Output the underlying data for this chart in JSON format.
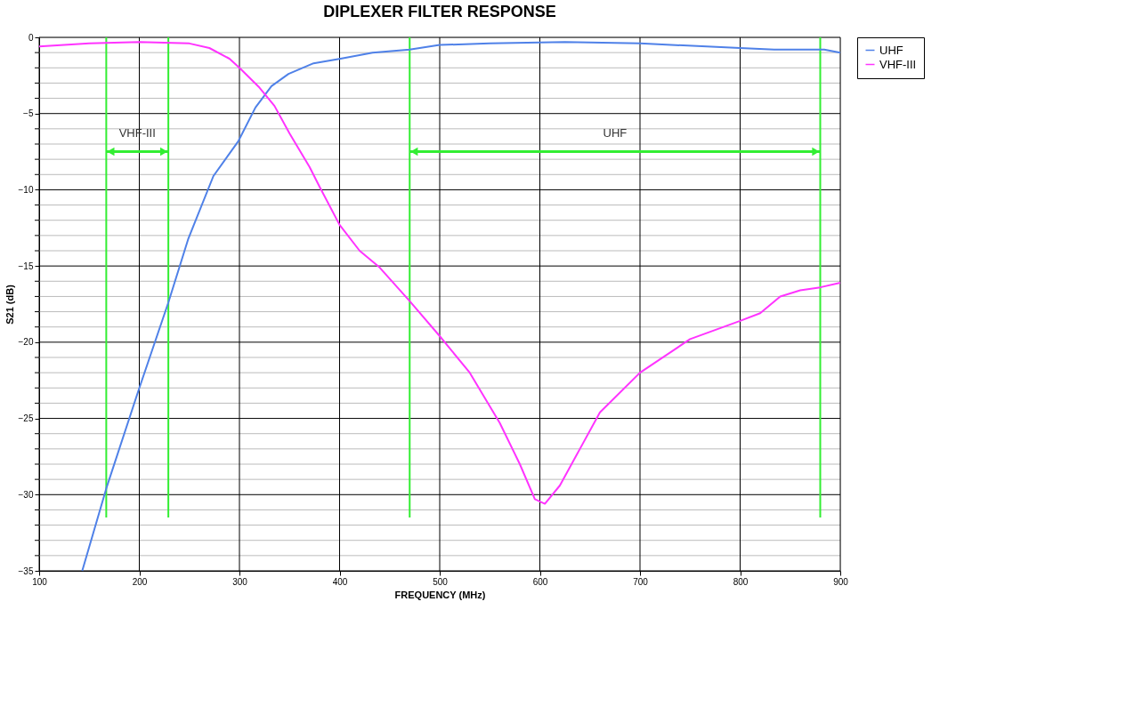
{
  "chart_data": {
    "type": "line",
    "title": "DIPLEXER FILTER RESPONSE",
    "xlabel": "FREQUENCY (MHz)",
    "ylabel": "S21 (dB)",
    "series": [
      {
        "name": "UHF",
        "color": "#4f81e8",
        "x": [
          143,
          167,
          199,
          229,
          249,
          274,
          299,
          316,
          332,
          349,
          374,
          401,
          433,
          470,
          500,
          550,
          625,
          700,
          800,
          834,
          884,
          900
        ],
        "values": [
          -35,
          -29.6,
          -23.2,
          -17.4,
          -13.2,
          -9.1,
          -6.8,
          -4.6,
          -3.2,
          -2.4,
          -1.7,
          -1.4,
          -1.0,
          -0.8,
          -0.5,
          -0.4,
          -0.3,
          -0.4,
          -0.7,
          -0.8,
          -0.8,
          -1.0
        ]
      },
      {
        "name": "VHF-III",
        "color": "#ff33ff",
        "x": [
          100,
          150,
          200,
          250,
          270,
          290,
          300,
          320,
          335,
          350,
          370,
          380,
          400,
          420,
          440,
          470,
          500,
          530,
          560,
          580,
          595,
          605,
          620,
          640,
          660,
          700,
          750,
          800,
          820,
          840,
          860,
          880,
          900
        ],
        "values": [
          -0.6,
          -0.4,
          -0.3,
          -0.4,
          -0.7,
          -1.4,
          -2.0,
          -3.3,
          -4.5,
          -6.3,
          -8.5,
          -9.8,
          -12.3,
          -14.0,
          -15.1,
          -17.3,
          -19.6,
          -22.0,
          -25.3,
          -28.0,
          -30.3,
          -30.6,
          -29.4,
          -27.0,
          -24.6,
          -22.0,
          -19.8,
          -18.6,
          -18.1,
          -17.0,
          -16.6,
          -16.4,
          -16.1
        ]
      }
    ],
    "xlim": [
      100,
      900
    ],
    "xticks": [
      100,
      200,
      300,
      400,
      500,
      600,
      700,
      800,
      900
    ],
    "ylim": [
      -35,
      0
    ],
    "yticks": [
      0,
      {
        "value": -1,
        "label": null
      },
      {
        "value": -2,
        "label": null
      },
      {
        "value": -3,
        "label": null
      },
      {
        "value": -4,
        "label": null
      },
      -5,
      {
        "value": -6,
        "label": null
      },
      {
        "value": -7,
        "label": null
      },
      {
        "value": -8,
        "label": null
      },
      {
        "value": -9,
        "label": null
      },
      -10,
      {
        "value": -11,
        "label": null
      },
      {
        "value": -12,
        "label": null
      },
      {
        "value": -13,
        "label": null
      },
      {
        "value": -14,
        "label": null
      },
      -15,
      {
        "value": -16,
        "label": null
      },
      {
        "value": -17,
        "label": null
      },
      {
        "value": -18,
        "label": null
      },
      {
        "value": -19,
        "label": null
      },
      -20,
      {
        "value": -21,
        "label": null
      },
      {
        "value": -22,
        "label": null
      },
      {
        "value": -23,
        "label": null
      },
      {
        "value": -24,
        "label": null
      },
      -25,
      {
        "value": -26,
        "label": null
      },
      {
        "value": -27,
        "label": null
      },
      {
        "value": -28,
        "label": null
      },
      {
        "value": -29,
        "label": null
      },
      -30,
      {
        "value": -31,
        "label": null
      },
      {
        "value": -32,
        "label": null
      },
      {
        "value": -33,
        "label": null
      },
      {
        "value": -34,
        "label": null
      },
      -35
    ],
    "ref_lines": [
      {
        "axis": "x",
        "value": 167,
        "color": "#33ee33"
      },
      {
        "axis": "x",
        "value": 229,
        "color": "#33ee33"
      },
      {
        "axis": "x",
        "value": 470,
        "color": "#33ee33"
      },
      {
        "axis": "x",
        "value": 880,
        "color": "#33ee33"
      }
    ],
    "annotations": [
      "VHF-III",
      "UHF"
    ],
    "grid": true,
    "legend": "right"
  }
}
